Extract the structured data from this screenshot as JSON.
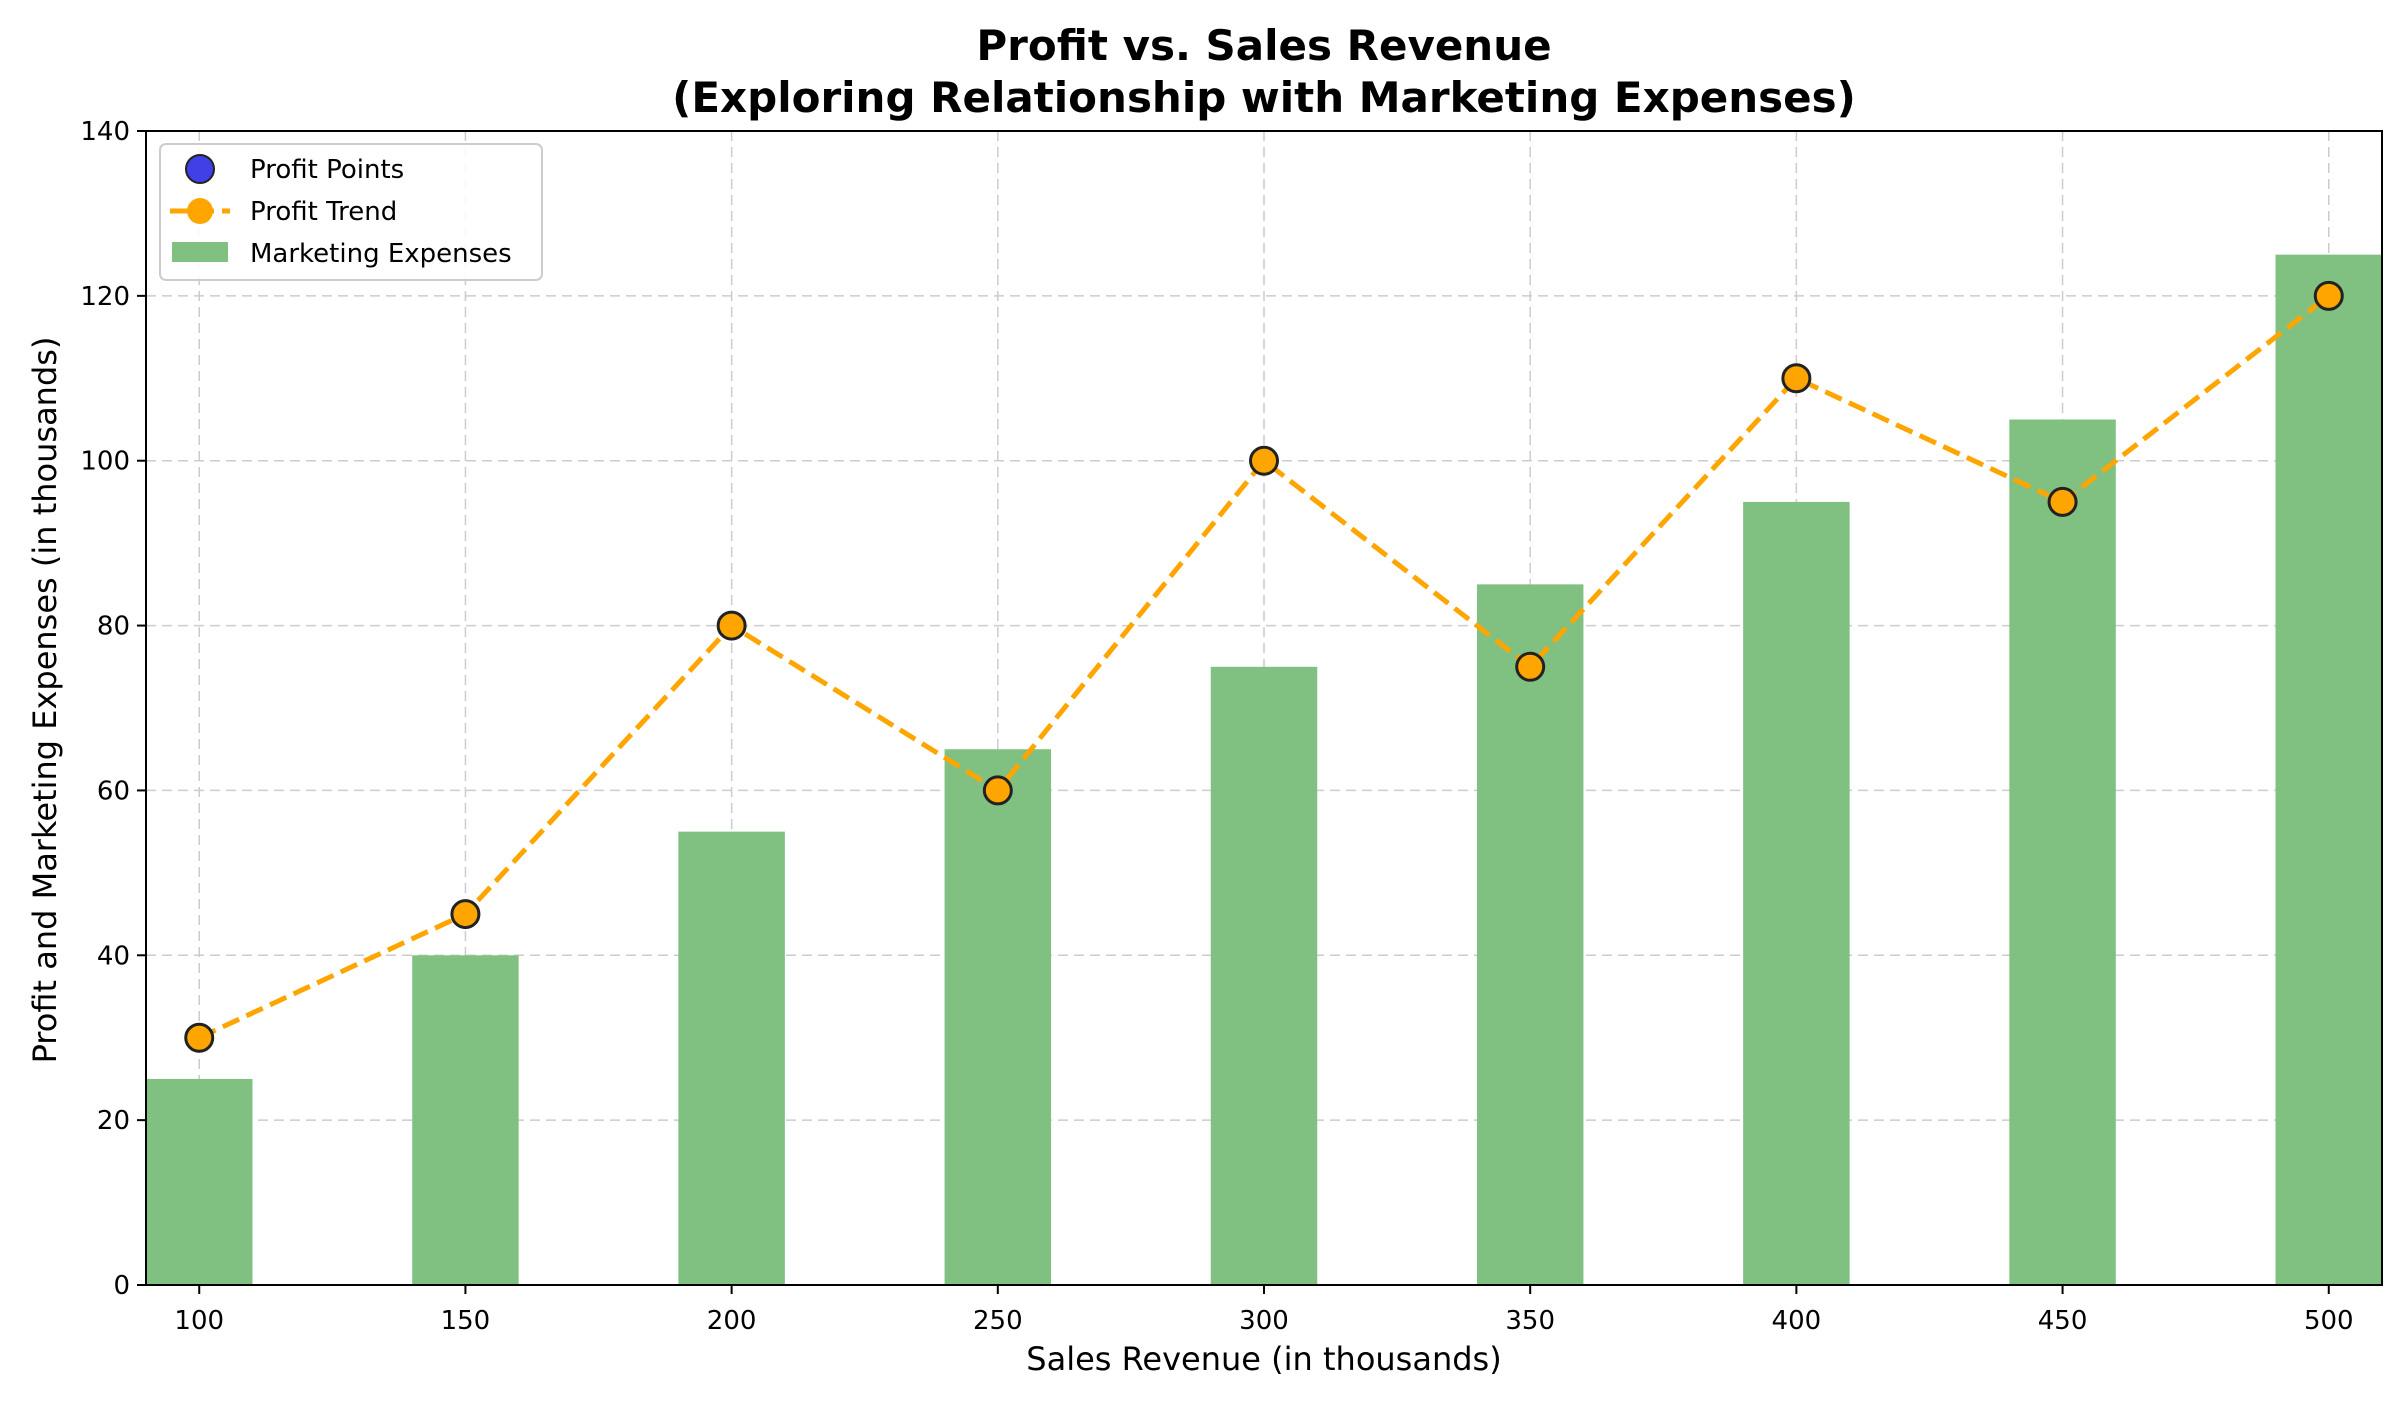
{
  "chart_data": {
    "type": "bar",
    "title_line1": "Profit vs. Sales Revenue",
    "title_line2": "(Exploring Relationship with Marketing Expenses)",
    "xlabel": "Sales Revenue (in thousands)",
    "ylabel": "Profit and Marketing Expenses (in thousands)",
    "x": [
      100,
      150,
      200,
      250,
      300,
      350,
      400,
      450,
      500
    ],
    "x_ticks": [
      100,
      150,
      200,
      250,
      300,
      350,
      400,
      450,
      500
    ],
    "y_ticks": [
      0,
      20,
      40,
      60,
      80,
      100,
      120,
      140
    ],
    "xlim": [
      90,
      510
    ],
    "ylim": [
      0,
      140
    ],
    "grid": true,
    "legend_position": "top-left",
    "series": [
      {
        "name": "Profit Points",
        "kind": "scatter",
        "values": [
          30,
          45,
          80,
          60,
          100,
          75,
          110,
          95,
          120
        ],
        "color": "#4040e6"
      },
      {
        "name": "Profit Trend",
        "kind": "line",
        "style": "dashed",
        "values": [
          30,
          45,
          80,
          60,
          100,
          75,
          110,
          95,
          120
        ],
        "color": "#ffa500"
      },
      {
        "name": "Marketing Expenses",
        "kind": "bar",
        "values": [
          25,
          40,
          55,
          65,
          75,
          85,
          95,
          105,
          125
        ],
        "color": "#80c080"
      }
    ]
  }
}
